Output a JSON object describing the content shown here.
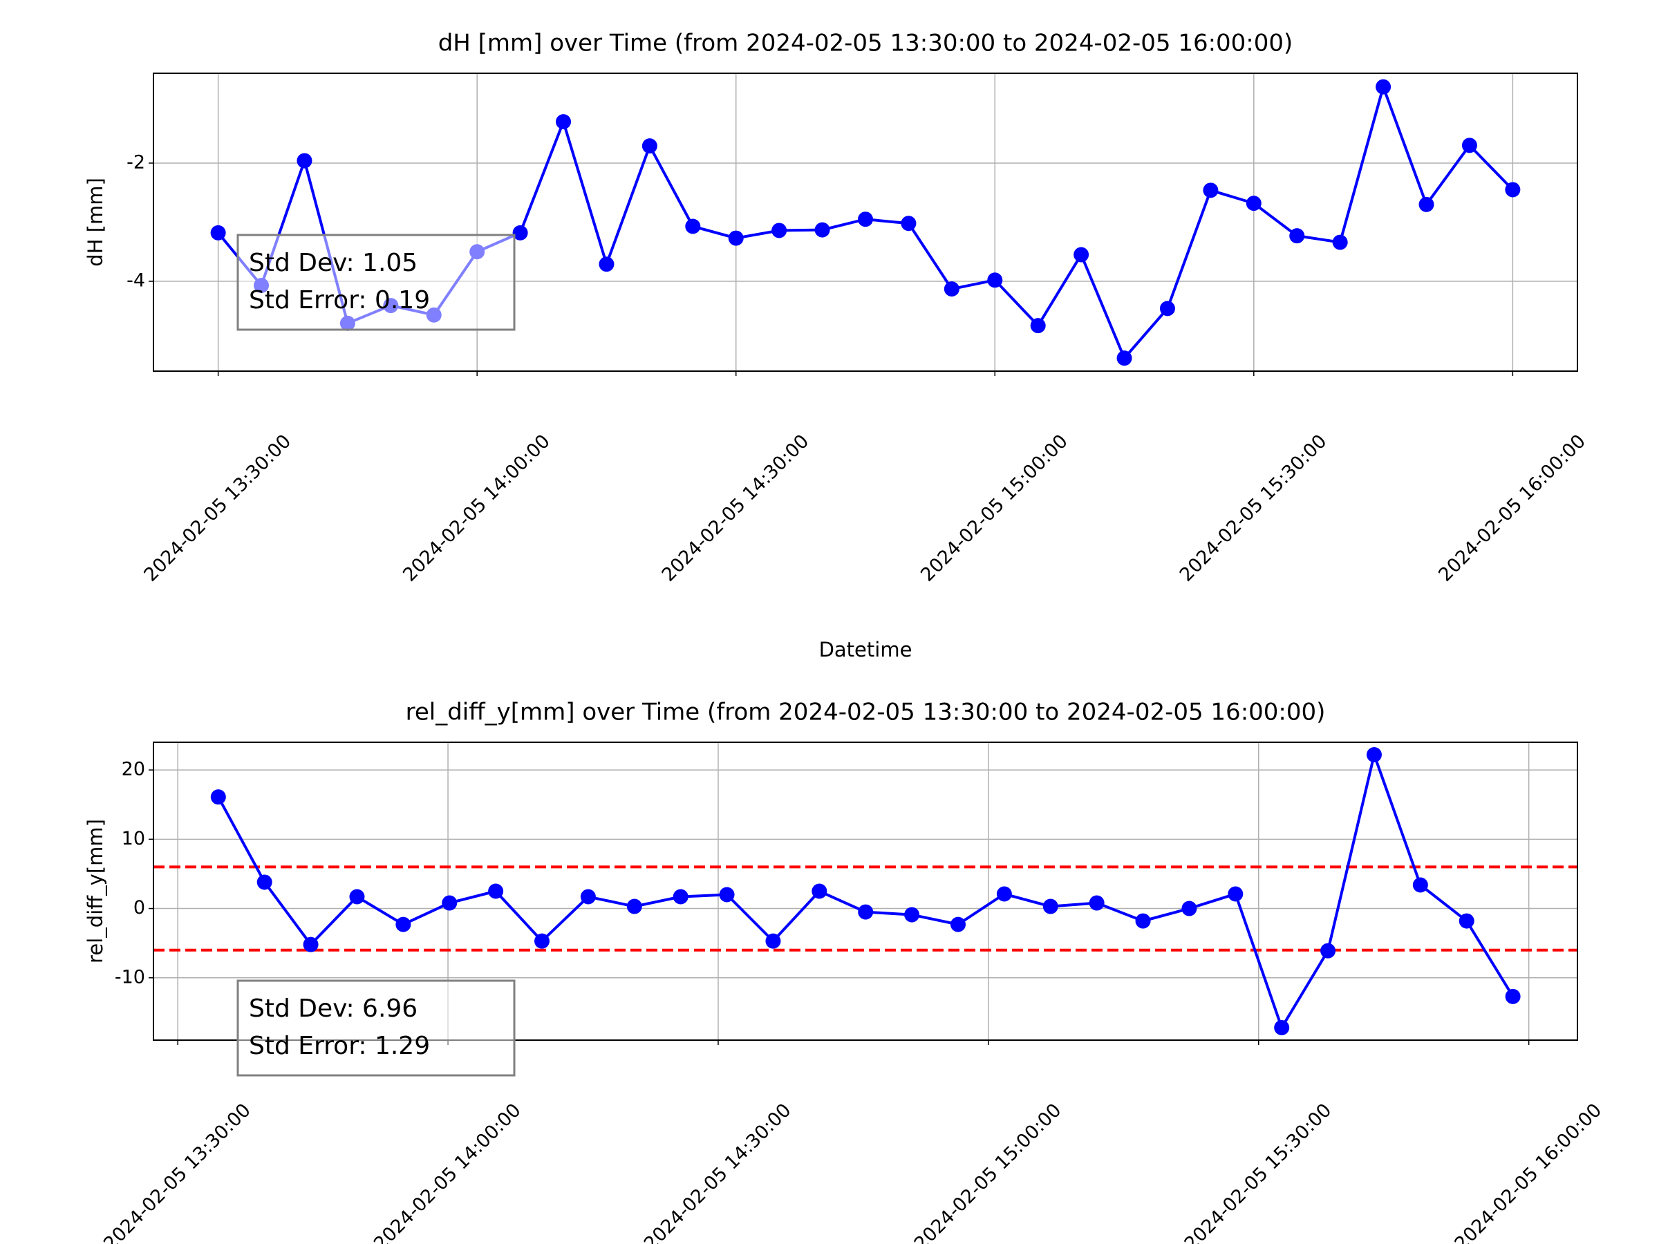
{
  "chart_data": [
    {
      "type": "line",
      "title": "dH [mm] over Time (from 2024-02-05 13:30:00 to 2024-02-05 16:00:00)",
      "xlabel": "Datetime",
      "ylabel": "dH [mm]",
      "color": "#0000ff",
      "grid": true,
      "x": [
        "2024-02-05 13:30:00",
        "2024-02-05 13:35:00",
        "2024-02-05 13:40:00",
        "2024-02-05 13:45:00",
        "2024-02-05 13:50:00",
        "2024-02-05 13:55:00",
        "2024-02-05 14:00:00",
        "2024-02-05 14:05:00",
        "2024-02-05 14:10:00",
        "2024-02-05 14:15:00",
        "2024-02-05 14:20:00",
        "2024-02-05 14:25:00",
        "2024-02-05 14:30:00",
        "2024-02-05 14:35:00",
        "2024-02-05 14:40:00",
        "2024-02-05 14:45:00",
        "2024-02-05 14:50:00",
        "2024-02-05 14:55:00",
        "2024-02-05 15:00:00",
        "2024-02-05 15:05:00",
        "2024-02-05 15:10:00",
        "2024-02-05 15:15:00",
        "2024-02-05 15:20:00",
        "2024-02-05 15:25:00",
        "2024-02-05 15:30:00",
        "2024-02-05 15:35:00",
        "2024-02-05 15:40:00",
        "2024-02-05 15:45:00",
        "2024-02-05 15:50:00",
        "2024-02-05 15:55:00",
        "2024-02-05 16:00:00"
      ],
      "values": [
        -3.18,
        -4.07,
        -1.96,
        -4.71,
        -4.41,
        -4.57,
        -3.5,
        -3.18,
        -1.3,
        -3.71,
        -1.71,
        -3.07,
        -3.27,
        -3.14,
        -3.13,
        -2.95,
        -3.02,
        -4.13,
        -3.98,
        -4.75,
        -3.55,
        -5.3,
        -4.46,
        -2.46,
        -2.68,
        -3.23,
        -3.34,
        -0.71,
        -2.7,
        -1.7,
        -2.45
      ],
      "xlim": [
        "2024-02-05 13:22:30",
        "2024-02-05 16:07:30"
      ],
      "xticks": [
        "2024-02-05 13:30:00",
        "2024-02-05 14:00:00",
        "2024-02-05 14:30:00",
        "2024-02-05 15:00:00",
        "2024-02-05 15:30:00",
        "2024-02-05 16:00:00"
      ],
      "ylim": [
        -5.52,
        -0.48
      ],
      "yticks": [
        -4,
        -2
      ],
      "annotation": [
        "Std Dev: 1.05",
        "Std Error: 0.19"
      ]
    },
    {
      "type": "line",
      "title": "rel_diff_y[mm] over Time (from 2024-02-05 13:30:00 to 2024-02-05 16:00:00)",
      "ylabel": "rel_diff_y[mm]",
      "color": "#0000ff",
      "grid": true,
      "x": [
        "2024-02-05 13:34:30",
        "2024-02-05 13:39:38",
        "2024-02-05 13:44:46",
        "2024-02-05 13:49:54",
        "2024-02-05 13:55:02",
        "2024-02-05 14:00:10",
        "2024-02-05 14:05:18",
        "2024-02-05 14:10:26",
        "2024-02-05 14:15:34",
        "2024-02-05 14:20:42",
        "2024-02-05 14:25:50",
        "2024-02-05 14:30:58",
        "2024-02-05 14:36:06",
        "2024-02-05 14:41:14",
        "2024-02-05 14:46:22",
        "2024-02-05 14:51:30",
        "2024-02-05 14:56:38",
        "2024-02-05 15:01:46",
        "2024-02-05 15:06:54",
        "2024-02-05 15:12:02",
        "2024-02-05 15:17:10",
        "2024-02-05 15:22:18",
        "2024-02-05 15:27:26",
        "2024-02-05 15:32:34",
        "2024-02-05 15:37:42",
        "2024-02-05 15:42:50",
        "2024-02-05 15:47:58",
        "2024-02-05 15:53:06",
        "2024-02-05 15:58:14"
      ],
      "values": [
        16.1,
        3.8,
        -5.2,
        1.7,
        -2.3,
        0.8,
        2.5,
        -4.7,
        1.7,
        0.3,
        1.7,
        2.0,
        -4.7,
        2.5,
        -0.5,
        -0.9,
        -2.3,
        2.1,
        0.3,
        0.8,
        -1.8,
        0,
        2.1,
        -17.2,
        -6.1,
        22.2,
        3.4,
        -1.8,
        -12.7
      ],
      "xlim": [
        "2024-02-05 13:27:18",
        "2024-02-05 16:05:24"
      ],
      "xticks": [
        "2024-02-05 13:30:00",
        "2024-02-05 14:00:00",
        "2024-02-05 14:30:00",
        "2024-02-05 15:00:00",
        "2024-02-05 15:30:00",
        "2024-02-05 16:00:00"
      ],
      "ylim": [
        -19,
        24
      ],
      "yticks": [
        -10,
        0,
        10,
        20
      ],
      "hlines": [
        6,
        -6
      ],
      "hline_color": "#ff0000",
      "annotation": [
        "Std Dev: 6.96",
        "Std Error: 1.29"
      ]
    }
  ]
}
